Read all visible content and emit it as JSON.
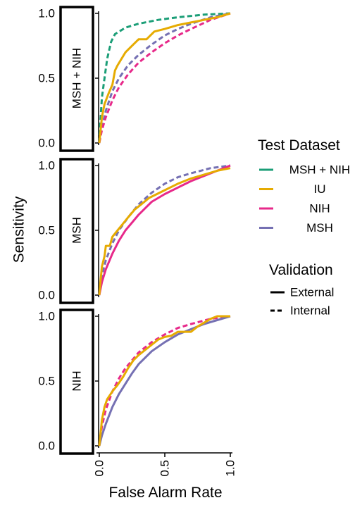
{
  "chart_data": {
    "type": "line",
    "xlabel": "False Alarm Rate",
    "ylabel": "Sensitivity",
    "xlim": [
      0,
      1
    ],
    "ylim": [
      0,
      1
    ],
    "x_ticks": [
      "0.0",
      "0.5",
      "1.0"
    ],
    "y_ticks": [
      "0.0",
      "0.5",
      "1.0"
    ],
    "grid": false,
    "legend_placement": "right",
    "legends": {
      "color": {
        "title": "Test Dataset",
        "entries": [
          {
            "label": "MSH + NIH",
            "color": "#1b9e77"
          },
          {
            "label": "IU",
            "color": "#e6ab02"
          },
          {
            "label": "NIH",
            "color": "#e7298a"
          },
          {
            "label": "MSH",
            "color": "#7570b3"
          }
        ]
      },
      "linetype": {
        "title": "Validation",
        "entries": [
          {
            "label": "External",
            "style": "solid"
          },
          {
            "label": "Internal",
            "style": "dashed"
          }
        ]
      }
    },
    "panels": [
      {
        "label": "MSH + NIH",
        "series": [
          {
            "test": "MSH + NIH",
            "validation": "Internal",
            "color": "#1b9e77",
            "points": [
              [
                0,
                0
              ],
              [
                0.01,
                0.2
              ],
              [
                0.02,
                0.35
              ],
              [
                0.04,
                0.5
              ],
              [
                0.06,
                0.65
              ],
              [
                0.09,
                0.78
              ],
              [
                0.12,
                0.84
              ],
              [
                0.2,
                0.89
              ],
              [
                0.3,
                0.92
              ],
              [
                0.45,
                0.95
              ],
              [
                0.6,
                0.97
              ],
              [
                0.8,
                0.99
              ],
              [
                1,
                1
              ]
            ]
          },
          {
            "test": "MSH",
            "validation": "Internal",
            "color": "#7570b3",
            "points": [
              [
                0,
                0
              ],
              [
                0.02,
                0.12
              ],
              [
                0.05,
                0.25
              ],
              [
                0.1,
                0.4
              ],
              [
                0.15,
                0.5
              ],
              [
                0.22,
                0.6
              ],
              [
                0.3,
                0.68
              ],
              [
                0.4,
                0.76
              ],
              [
                0.5,
                0.83
              ],
              [
                0.6,
                0.88
              ],
              [
                0.7,
                0.92
              ],
              [
                0.85,
                0.97
              ],
              [
                1,
                1
              ]
            ]
          },
          {
            "test": "NIH",
            "validation": "Internal",
            "color": "#e7298a",
            "points": [
              [
                0,
                0
              ],
              [
                0.02,
                0.1
              ],
              [
                0.05,
                0.2
              ],
              [
                0.1,
                0.33
              ],
              [
                0.15,
                0.43
              ],
              [
                0.22,
                0.53
              ],
              [
                0.3,
                0.62
              ],
              [
                0.4,
                0.7
              ],
              [
                0.5,
                0.77
              ],
              [
                0.6,
                0.83
              ],
              [
                0.7,
                0.88
              ],
              [
                0.85,
                0.95
              ],
              [
                1,
                1
              ]
            ]
          },
          {
            "test": "IU",
            "validation": "External",
            "color": "#e6ab02",
            "points": [
              [
                0,
                0
              ],
              [
                0.01,
                0.1
              ],
              [
                0.02,
                0.2
              ],
              [
                0.04,
                0.3
              ],
              [
                0.07,
                0.38
              ],
              [
                0.1,
                0.45
              ],
              [
                0.12,
                0.56
              ],
              [
                0.14,
                0.6
              ],
              [
                0.17,
                0.65
              ],
              [
                0.2,
                0.7
              ],
              [
                0.24,
                0.74
              ],
              [
                0.3,
                0.8
              ],
              [
                0.36,
                0.8
              ],
              [
                0.42,
                0.86
              ],
              [
                0.5,
                0.88
              ],
              [
                0.6,
                0.91
              ],
              [
                0.7,
                0.93
              ],
              [
                0.8,
                0.95
              ],
              [
                0.9,
                0.97
              ],
              [
                1,
                1
              ]
            ]
          }
        ]
      },
      {
        "label": "MSH",
        "series": [
          {
            "test": "MSH",
            "validation": "Internal",
            "color": "#7570b3",
            "points": [
              [
                0,
                0
              ],
              [
                0.02,
                0.15
              ],
              [
                0.05,
                0.27
              ],
              [
                0.1,
                0.4
              ],
              [
                0.15,
                0.5
              ],
              [
                0.22,
                0.6
              ],
              [
                0.3,
                0.7
              ],
              [
                0.4,
                0.79
              ],
              [
                0.5,
                0.86
              ],
              [
                0.6,
                0.91
              ],
              [
                0.7,
                0.94
              ],
              [
                0.85,
                0.98
              ],
              [
                1,
                1
              ]
            ]
          },
          {
            "test": "NIH",
            "validation": "External",
            "color": "#e7298a",
            "points": [
              [
                0,
                0
              ],
              [
                0.02,
                0.1
              ],
              [
                0.05,
                0.2
              ],
              [
                0.1,
                0.32
              ],
              [
                0.15,
                0.42
              ],
              [
                0.2,
                0.5
              ],
              [
                0.25,
                0.56
              ],
              [
                0.3,
                0.62
              ],
              [
                0.35,
                0.67
              ],
              [
                0.4,
                0.72
              ],
              [
                0.5,
                0.78
              ],
              [
                0.6,
                0.83
              ],
              [
                0.7,
                0.88
              ],
              [
                0.8,
                0.92
              ],
              [
                0.9,
                0.96
              ],
              [
                1,
                1
              ]
            ]
          },
          {
            "test": "IU",
            "validation": "External",
            "color": "#e6ab02",
            "points": [
              [
                0,
                0
              ],
              [
                0.01,
                0.12
              ],
              [
                0.02,
                0.22
              ],
              [
                0.04,
                0.3
              ],
              [
                0.05,
                0.38
              ],
              [
                0.08,
                0.38
              ],
              [
                0.1,
                0.45
              ],
              [
                0.14,
                0.5
              ],
              [
                0.18,
                0.55
              ],
              [
                0.22,
                0.6
              ],
              [
                0.27,
                0.66
              ],
              [
                0.32,
                0.7
              ],
              [
                0.38,
                0.75
              ],
              [
                0.44,
                0.78
              ],
              [
                0.5,
                0.81
              ],
              [
                0.6,
                0.86
              ],
              [
                0.7,
                0.9
              ],
              [
                0.8,
                0.93
              ],
              [
                0.9,
                0.96
              ],
              [
                1,
                0.98
              ]
            ]
          }
        ]
      },
      {
        "label": "NIH",
        "series": [
          {
            "test": "NIH",
            "validation": "Internal",
            "color": "#e7298a",
            "points": [
              [
                0,
                0
              ],
              [
                0.02,
                0.15
              ],
              [
                0.05,
                0.28
              ],
              [
                0.1,
                0.42
              ],
              [
                0.15,
                0.52
              ],
              [
                0.2,
                0.6
              ],
              [
                0.25,
                0.66
              ],
              [
                0.3,
                0.72
              ],
              [
                0.4,
                0.8
              ],
              [
                0.5,
                0.86
              ],
              [
                0.6,
                0.91
              ],
              [
                0.7,
                0.94
              ],
              [
                0.85,
                0.98
              ],
              [
                1,
                1
              ]
            ]
          },
          {
            "test": "MSH",
            "validation": "External",
            "color": "#7570b3",
            "points": [
              [
                0,
                0
              ],
              [
                0.02,
                0.08
              ],
              [
                0.05,
                0.17
              ],
              [
                0.1,
                0.3
              ],
              [
                0.15,
                0.4
              ],
              [
                0.2,
                0.48
              ],
              [
                0.25,
                0.56
              ],
              [
                0.3,
                0.63
              ],
              [
                0.4,
                0.73
              ],
              [
                0.5,
                0.8
              ],
              [
                0.6,
                0.86
              ],
              [
                0.7,
                0.9
              ],
              [
                0.8,
                0.94
              ],
              [
                0.9,
                0.97
              ],
              [
                1,
                1
              ]
            ]
          },
          {
            "test": "IU",
            "validation": "External",
            "color": "#e6ab02",
            "points": [
              [
                0,
                0
              ],
              [
                0.01,
                0.1
              ],
              [
                0.02,
                0.2
              ],
              [
                0.04,
                0.3
              ],
              [
                0.06,
                0.36
              ],
              [
                0.1,
                0.42
              ],
              [
                0.14,
                0.47
              ],
              [
                0.18,
                0.53
              ],
              [
                0.22,
                0.6
              ],
              [
                0.26,
                0.66
              ],
              [
                0.3,
                0.7
              ],
              [
                0.35,
                0.74
              ],
              [
                0.4,
                0.78
              ],
              [
                0.45,
                0.82
              ],
              [
                0.5,
                0.84
              ],
              [
                0.55,
                0.85
              ],
              [
                0.6,
                0.88
              ],
              [
                0.7,
                0.88
              ],
              [
                0.75,
                0.92
              ],
              [
                0.8,
                0.95
              ],
              [
                0.85,
                0.98
              ],
              [
                0.9,
                1
              ],
              [
                1,
                1
              ]
            ]
          }
        ]
      }
    ]
  }
}
